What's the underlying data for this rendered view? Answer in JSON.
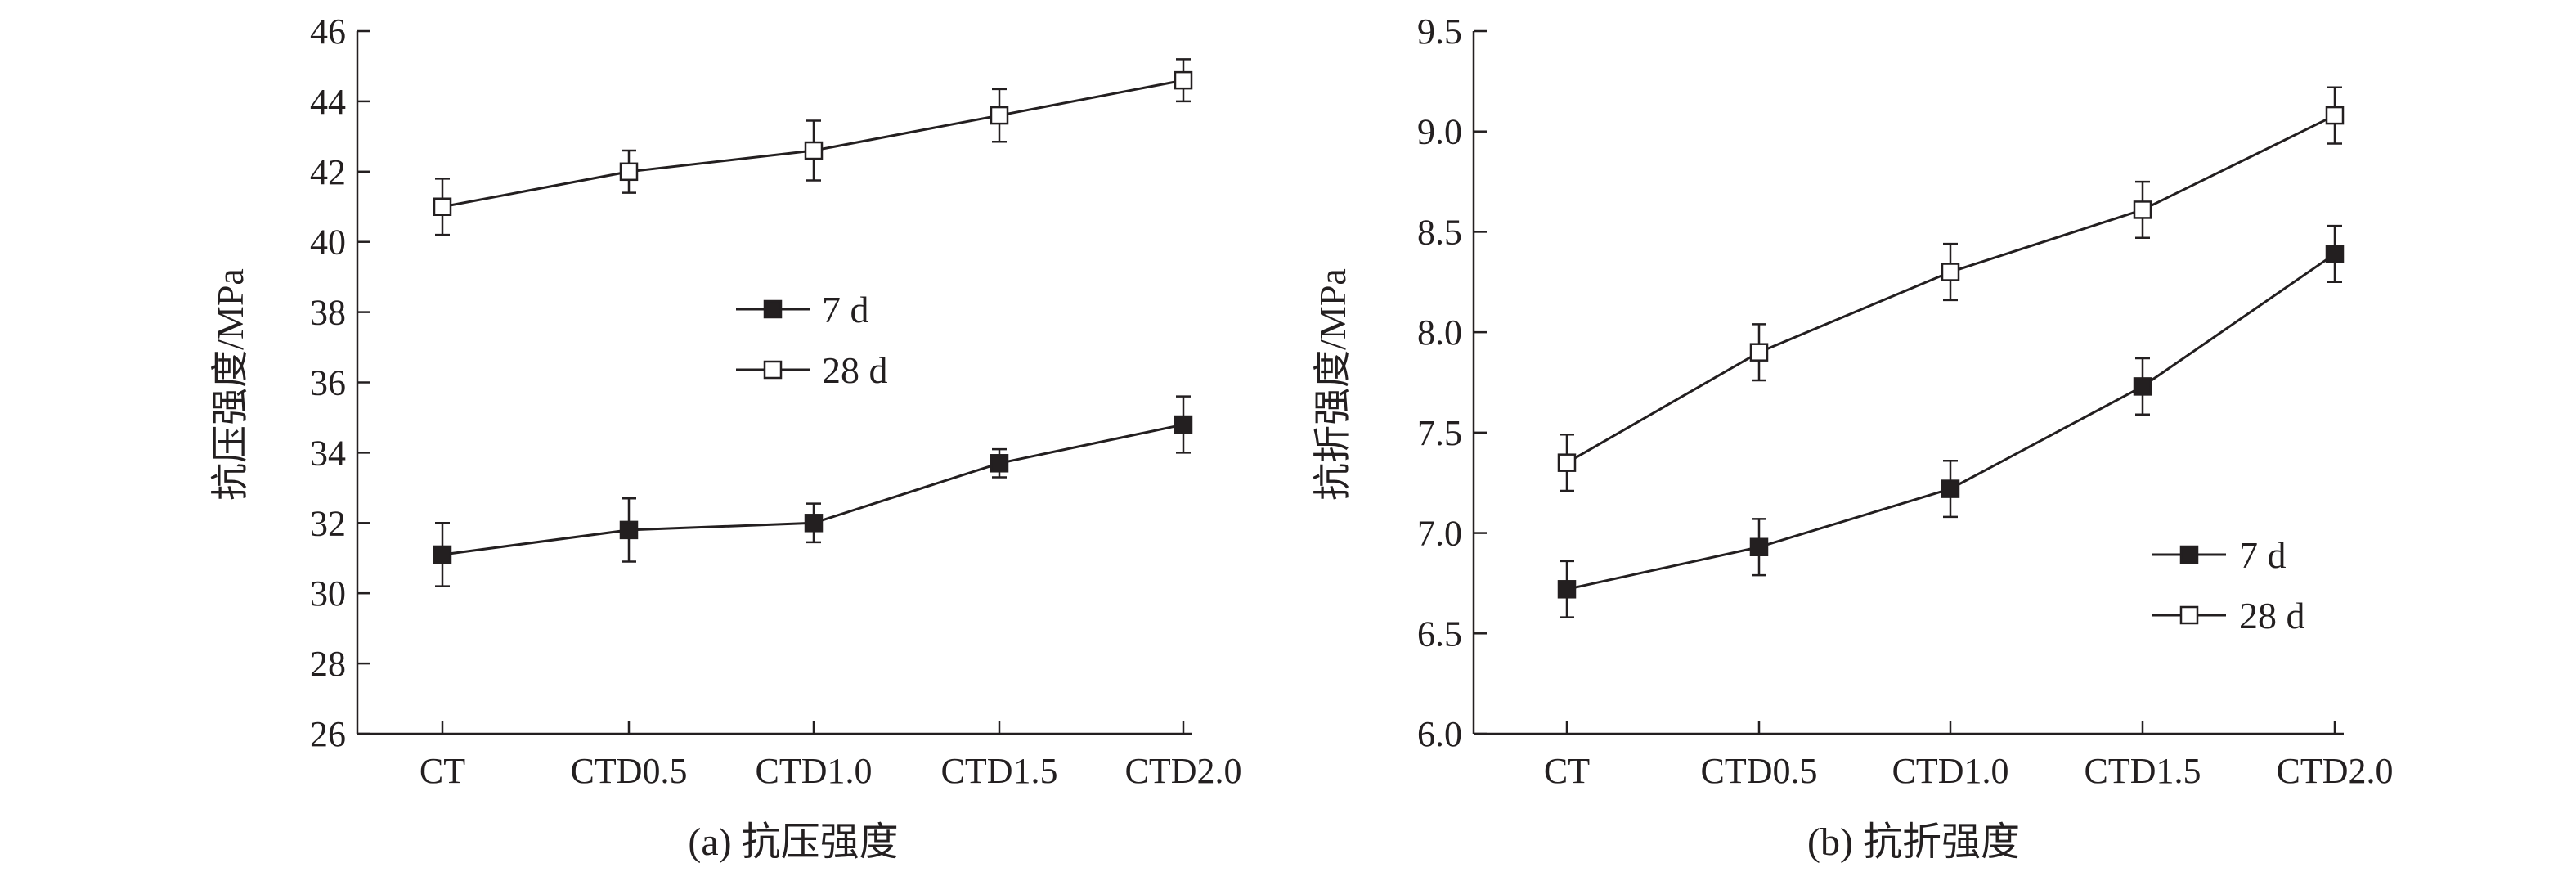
{
  "chart_data": [
    {
      "type": "line",
      "ylabel": "抗压强度/MPa",
      "caption": "(a) 抗压强度",
      "categories": [
        "CT",
        "CTD0.5",
        "CTD1.0",
        "CTD1.5",
        "CTD2.0"
      ],
      "ylim": [
        26,
        46
      ],
      "yticks": [
        "26",
        "28",
        "30",
        "32",
        "34",
        "36",
        "38",
        "40",
        "42",
        "44",
        "46"
      ],
      "grid": false,
      "legend_position": "center-right",
      "series": [
        {
          "name": "7 d",
          "marker": "filled-square",
          "values": [
            31.1,
            31.8,
            32.0,
            33.7,
            34.8
          ],
          "errors": [
            0.9,
            0.9,
            0.55,
            0.4,
            0.8
          ]
        },
        {
          "name": "28 d",
          "marker": "open-square",
          "values": [
            41.0,
            42.0,
            42.6,
            43.6,
            44.6
          ],
          "errors": [
            0.8,
            0.6,
            0.85,
            0.75,
            0.6
          ]
        }
      ]
    },
    {
      "type": "line",
      "ylabel": "抗折强度/MPa",
      "caption": "(b) 抗折强度",
      "categories": [
        "CT",
        "CTD0.5",
        "CTD1.0",
        "CTD1.5",
        "CTD2.0"
      ],
      "ylim": [
        6.0,
        9.5
      ],
      "yticks": [
        "6.0",
        "6.5",
        "7.0",
        "7.5",
        "8.0",
        "8.5",
        "9.0",
        "9.5"
      ],
      "grid": false,
      "legend_position": "bottom-right",
      "series": [
        {
          "name": "7 d",
          "marker": "filled-square",
          "values": [
            6.72,
            6.93,
            7.22,
            7.73,
            8.39
          ],
          "errors": [
            0.14,
            0.14,
            0.14,
            0.14,
            0.14
          ]
        },
        {
          "name": "28 d",
          "marker": "open-square",
          "values": [
            7.35,
            7.9,
            8.3,
            8.61,
            9.08
          ],
          "errors": [
            0.14,
            0.14,
            0.14,
            0.14,
            0.14
          ]
        }
      ]
    }
  ],
  "colors": {
    "ink": "#231f20",
    "background": "#ffffff"
  }
}
